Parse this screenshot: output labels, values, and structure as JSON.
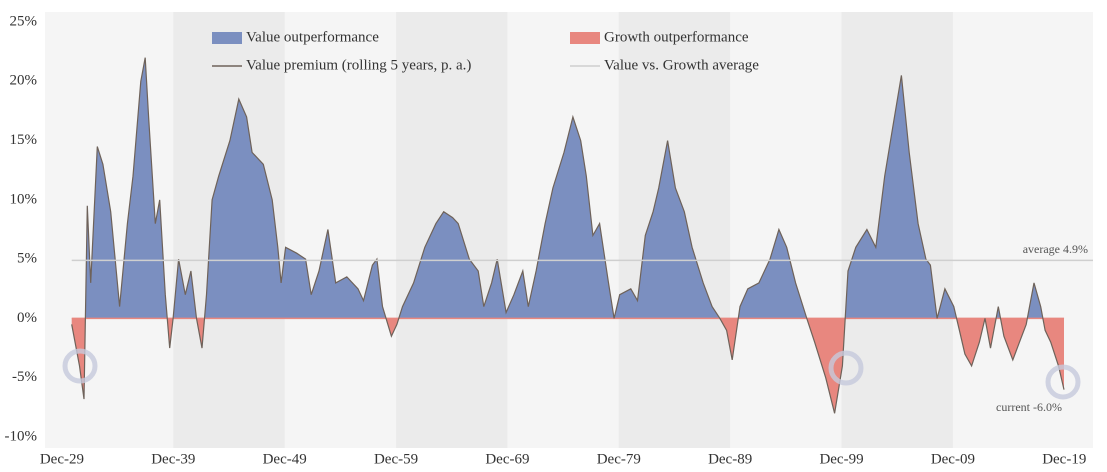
{
  "chart_data": {
    "type": "area",
    "series": [
      {
        "name": "Value premium (rolling 5 years, p. a.)",
        "color": "#6e625a",
        "x": [
          1930.8,
          1931.5,
          1931.9,
          1932.2,
          1932.5,
          1933.1,
          1933.6,
          1934.3,
          1935.1,
          1935.8,
          1936.3,
          1937.0,
          1937.4,
          1937.7,
          1938.3,
          1938.7,
          1939.2,
          1939.6,
          1939.9,
          1940.4,
          1941.0,
          1941.5,
          1942.0,
          1942.5,
          1942.9,
          1943.4,
          1944.0,
          1945.0,
          1945.8,
          1946.5,
          1947.0,
          1948.0,
          1948.8,
          1949.3,
          1949.6,
          1950.0,
          1951.0,
          1951.8,
          1952.3,
          1953.0,
          1953.8,
          1954.5,
          1955.5,
          1956.5,
          1957.0,
          1957.8,
          1958.2,
          1958.7,
          1959.5,
          1960.0,
          1960.5,
          1961.5,
          1962.5,
          1963.5,
          1964.2,
          1965.0,
          1965.5,
          1966.5,
          1967.3,
          1967.8,
          1968.5,
          1969.0,
          1969.8,
          1970.5,
          1971.3,
          1971.8,
          1972.5,
          1973.3,
          1974.0,
          1975.0,
          1975.8,
          1976.5,
          1977.0,
          1977.6,
          1978.2,
          1979.0,
          1979.5,
          1980.0,
          1981.0,
          1981.6,
          1982.3,
          1983.0,
          1983.5,
          1984.3,
          1985.0,
          1985.8,
          1986.5,
          1987.5,
          1988.3,
          1989.0,
          1989.6,
          1990.1,
          1990.8,
          1991.5,
          1992.5,
          1993.5,
          1994.3,
          1995.0,
          1995.8,
          1996.8,
          1997.5,
          1998.5,
          1999.3,
          2000.0,
          2000.5,
          2001.2,
          2002.2,
          2003.0,
          2003.8,
          2004.5,
          2005.3,
          2006.0,
          2006.8,
          2007.5,
          2007.9,
          2008.5,
          2009.2,
          2010.0,
          2010.5,
          2011.0,
          2011.6,
          2012.3,
          2012.8,
          2013.3,
          2014.0,
          2014.5,
          2015.3,
          2015.9,
          2016.5,
          2017.2,
          2017.8,
          2018.2,
          2018.7,
          2019.4,
          2019.9
        ],
        "values": [
          -0.5,
          -4,
          -6.8,
          9.5,
          3,
          14.5,
          13,
          9,
          1,
          8,
          12,
          20,
          22,
          17,
          8,
          10,
          2,
          -2.5,
          0,
          5,
          2,
          4,
          0,
          -2.5,
          2,
          10,
          12,
          15,
          18.5,
          17,
          14,
          13,
          10,
          6,
          3,
          6,
          5.5,
          5,
          2,
          4,
          7.5,
          3,
          3.5,
          2.5,
          1.5,
          4.5,
          5,
          1,
          -1.5,
          -0.5,
          1,
          3,
          6,
          8,
          9,
          8.5,
          8,
          5,
          4,
          1,
          3,
          5,
          0.5,
          2,
          4,
          1,
          4,
          8,
          11,
          14,
          17,
          15,
          12,
          7,
          8,
          3,
          0,
          2,
          2.5,
          1.5,
          7,
          9,
          11,
          15,
          11,
          9,
          6,
          3,
          1,
          0,
          -1,
          -3.5,
          1,
          2.5,
          3,
          5,
          7.5,
          6,
          3,
          0,
          -2,
          -5,
          -8,
          -4,
          4,
          6,
          7.5,
          6,
          12,
          16,
          20.5,
          14,
          8,
          5,
          4.5,
          0,
          2.5,
          1,
          -1,
          -3,
          -4,
          -2,
          0,
          -2.5,
          1,
          -1.5,
          -3.5,
          -2,
          -0.5,
          3,
          1,
          -1,
          -2,
          -4,
          -6
        ]
      },
      {
        "name": "Value vs. Growth average",
        "color": "#cfcfcf",
        "value": 4.9,
        "label": "average 4.9%"
      }
    ],
    "fill_legend": [
      {
        "name": "Value outperformance",
        "color": "#7b8fc0"
      },
      {
        "name": "Growth outperformance",
        "color": "#e8877f"
      }
    ],
    "current": {
      "value": -6.0,
      "label": "current -6.0%"
    },
    "xlim": [
      1928.4,
      2022.5
    ],
    "xticks": [
      {
        "value": 1929.92,
        "label": "Dec-29"
      },
      {
        "value": 1939.92,
        "label": "Dec-39"
      },
      {
        "value": 1949.92,
        "label": "Dec-49"
      },
      {
        "value": 1959.92,
        "label": "Dec-59"
      },
      {
        "value": 1969.92,
        "label": "Dec-69"
      },
      {
        "value": 1979.92,
        "label": "Dec-79"
      },
      {
        "value": 1989.92,
        "label": "Dec-89"
      },
      {
        "value": 1999.92,
        "label": "Dec-99"
      },
      {
        "value": 2009.92,
        "label": "Dec-09"
      },
      {
        "value": 2019.92,
        "label": "Dec-19"
      }
    ],
    "ylim": [
      -10,
      25
    ],
    "yticks": [
      {
        "value": 25,
        "label": "25%"
      },
      {
        "value": 20,
        "label": "20%"
      },
      {
        "value": 15,
        "label": "15%"
      },
      {
        "value": 10,
        "label": "10%"
      },
      {
        "value": 5,
        "label": "5%"
      },
      {
        "value": 0,
        "label": "0%"
      },
      {
        "value": -5,
        "label": "-5%"
      },
      {
        "value": -10,
        "label": "-10%"
      }
    ]
  }
}
